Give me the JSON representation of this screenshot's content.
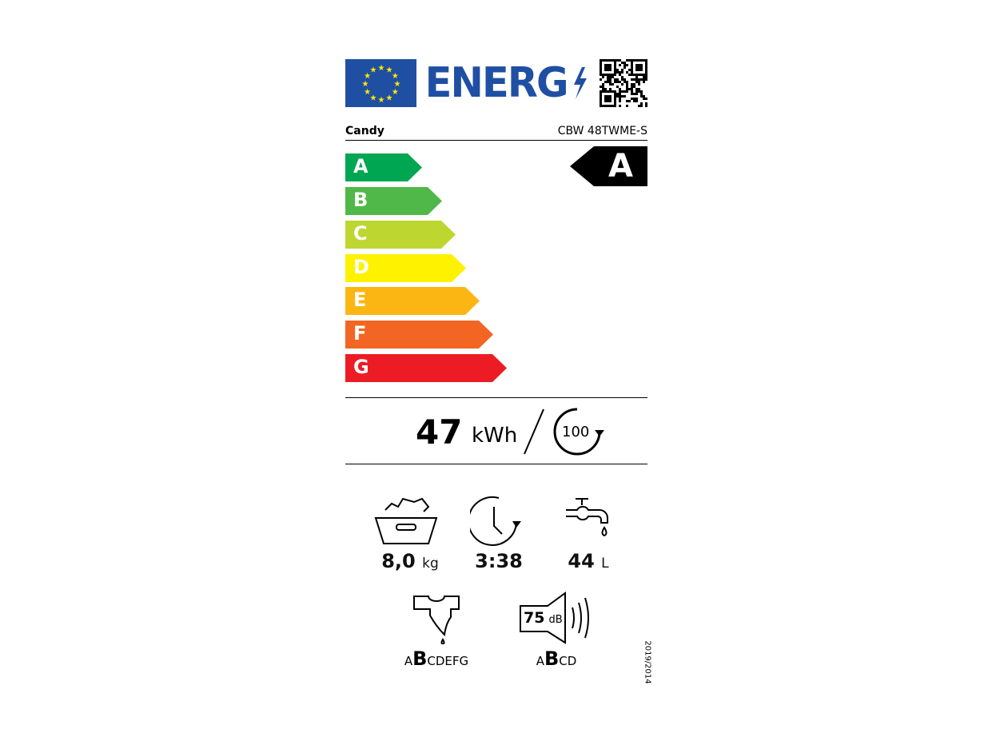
{
  "header": {
    "energy_word": "ENERG",
    "brand": "Candy",
    "model": "CBW 48TWME-S"
  },
  "classes": [
    {
      "label": "A",
      "color": "#00a651"
    },
    {
      "label": "B",
      "color": "#50b848"
    },
    {
      "label": "C",
      "color": "#bed630"
    },
    {
      "label": "D",
      "color": "#fff200"
    },
    {
      "label": "E",
      "color": "#fcb614"
    },
    {
      "label": "F",
      "color": "#f26522"
    },
    {
      "label": "G",
      "color": "#ed1c24"
    }
  ],
  "rating": {
    "class": "A"
  },
  "energy": {
    "value": "47",
    "unit": "kWh",
    "cycles": "100"
  },
  "specs": {
    "capacity": {
      "value": "8,0",
      "unit": "kg"
    },
    "duration": {
      "value": "3:38"
    },
    "water": {
      "value": "44",
      "unit": "L"
    },
    "spin_class": {
      "before": "A",
      "selected": "B",
      "after": "CDEFG"
    },
    "noise": {
      "value": "75",
      "unit": "dB",
      "before": "A",
      "selected": "B",
      "after": "CD"
    }
  },
  "regulation": "2019/2014"
}
